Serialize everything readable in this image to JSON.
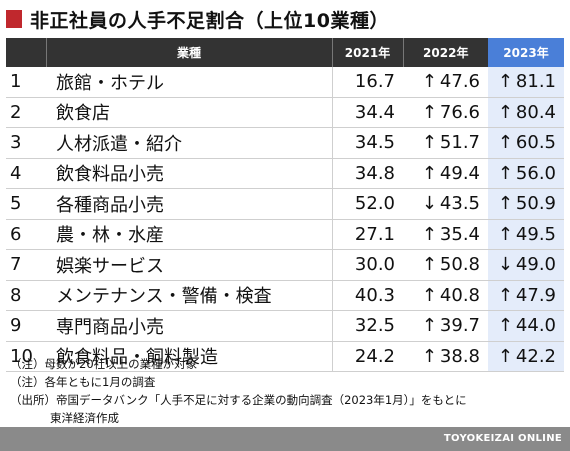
{
  "title": "非正社員の人手不足割合（上位10業種）",
  "columns": {
    "rank": "",
    "industry": "業種",
    "y2021": "2021年",
    "y2022": "2022年",
    "y2023": "2023年"
  },
  "rows": [
    {
      "rank": "1",
      "industry": "旅館・ホテル",
      "y2021": "16.7",
      "a2022": "↑",
      "y2022": "47.6",
      "a2023": "↑",
      "y2023": "81.1"
    },
    {
      "rank": "2",
      "industry": "飲食店",
      "y2021": "34.4",
      "a2022": "↑",
      "y2022": "76.6",
      "a2023": "↑",
      "y2023": "80.4"
    },
    {
      "rank": "3",
      "industry": "人材派遣・紹介",
      "y2021": "34.5",
      "a2022": "↑",
      "y2022": "51.7",
      "a2023": "↑",
      "y2023": "60.5"
    },
    {
      "rank": "4",
      "industry": "飲食料品小売",
      "y2021": "34.8",
      "a2022": "↑",
      "y2022": "49.4",
      "a2023": "↑",
      "y2023": "56.0"
    },
    {
      "rank": "5",
      "industry": "各種商品小売",
      "y2021": "52.0",
      "a2022": "↓",
      "y2022": "43.5",
      "a2023": "↑",
      "y2023": "50.9"
    },
    {
      "rank": "6",
      "industry": "農・林・水産",
      "y2021": "27.1",
      "a2022": "↑",
      "y2022": "35.4",
      "a2023": "↑",
      "y2023": "49.5"
    },
    {
      "rank": "7",
      "industry": "娯楽サービス",
      "y2021": "30.0",
      "a2022": "↑",
      "y2022": "50.8",
      "a2023": "↓",
      "y2023": "49.0"
    },
    {
      "rank": "8",
      "industry": "メンテナンス・警備・検査",
      "y2021": "40.3",
      "a2022": "↑",
      "y2022": "40.8",
      "a2023": "↑",
      "y2023": "47.9"
    },
    {
      "rank": "9",
      "industry": "専門商品小売",
      "y2021": "32.5",
      "a2022": "↑",
      "y2022": "39.7",
      "a2023": "↑",
      "y2023": "44.0"
    },
    {
      "rank": "10",
      "industry": "飲食料品・飼料製造",
      "y2021": "24.2",
      "a2022": "↑",
      "y2022": "38.8",
      "a2023": "↑",
      "y2023": "42.2"
    }
  ],
  "notes": [
    "（注）母数が20社以上の業種が対象",
    "（注）各年ともに1月の調査",
    "（出所）帝国データバンク「人手不足に対する企業の動向調査（2023年1月）」をもとに",
    "東洋経済作成"
  ],
  "footer": "TOYOKEIZAI ONLINE",
  "colors": {
    "title_mark": "#c0282d",
    "header_bg": "#333333",
    "highlight_header": "#4a7fd8",
    "highlight_cell": "#e4ecfa",
    "footer_bg": "#8a8a8a"
  }
}
